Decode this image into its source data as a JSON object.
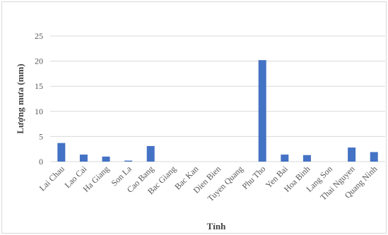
{
  "chart_data": {
    "type": "bar",
    "title": "",
    "xlabel": "Tỉnh",
    "ylabel": "Lượng mưa (mm)",
    "ylim": [
      0,
      25
    ],
    "yticks": [
      0,
      5,
      10,
      15,
      20,
      25
    ],
    "grid": true,
    "legend": "none",
    "categories": [
      "Lai Chau",
      "Lao Cai",
      "Ha Giang",
      "Son La",
      "Cao Bang",
      "Bac Giang",
      "Bac Kan",
      "Dien Bien",
      "Tuyen Quang",
      "Phu Tho",
      "Yen Bai",
      "Hoa Binh",
      "Lang Son",
      "Thai Nguyen",
      "Quang Ninh"
    ],
    "values": [
      3.7,
      1.4,
      1.0,
      0.2,
      3.1,
      0,
      0,
      0,
      0,
      20.2,
      1.4,
      1.3,
      0,
      2.8,
      1.9
    ],
    "bar_color": "#4472c4",
    "grid_color": "#d9d9d9"
  }
}
